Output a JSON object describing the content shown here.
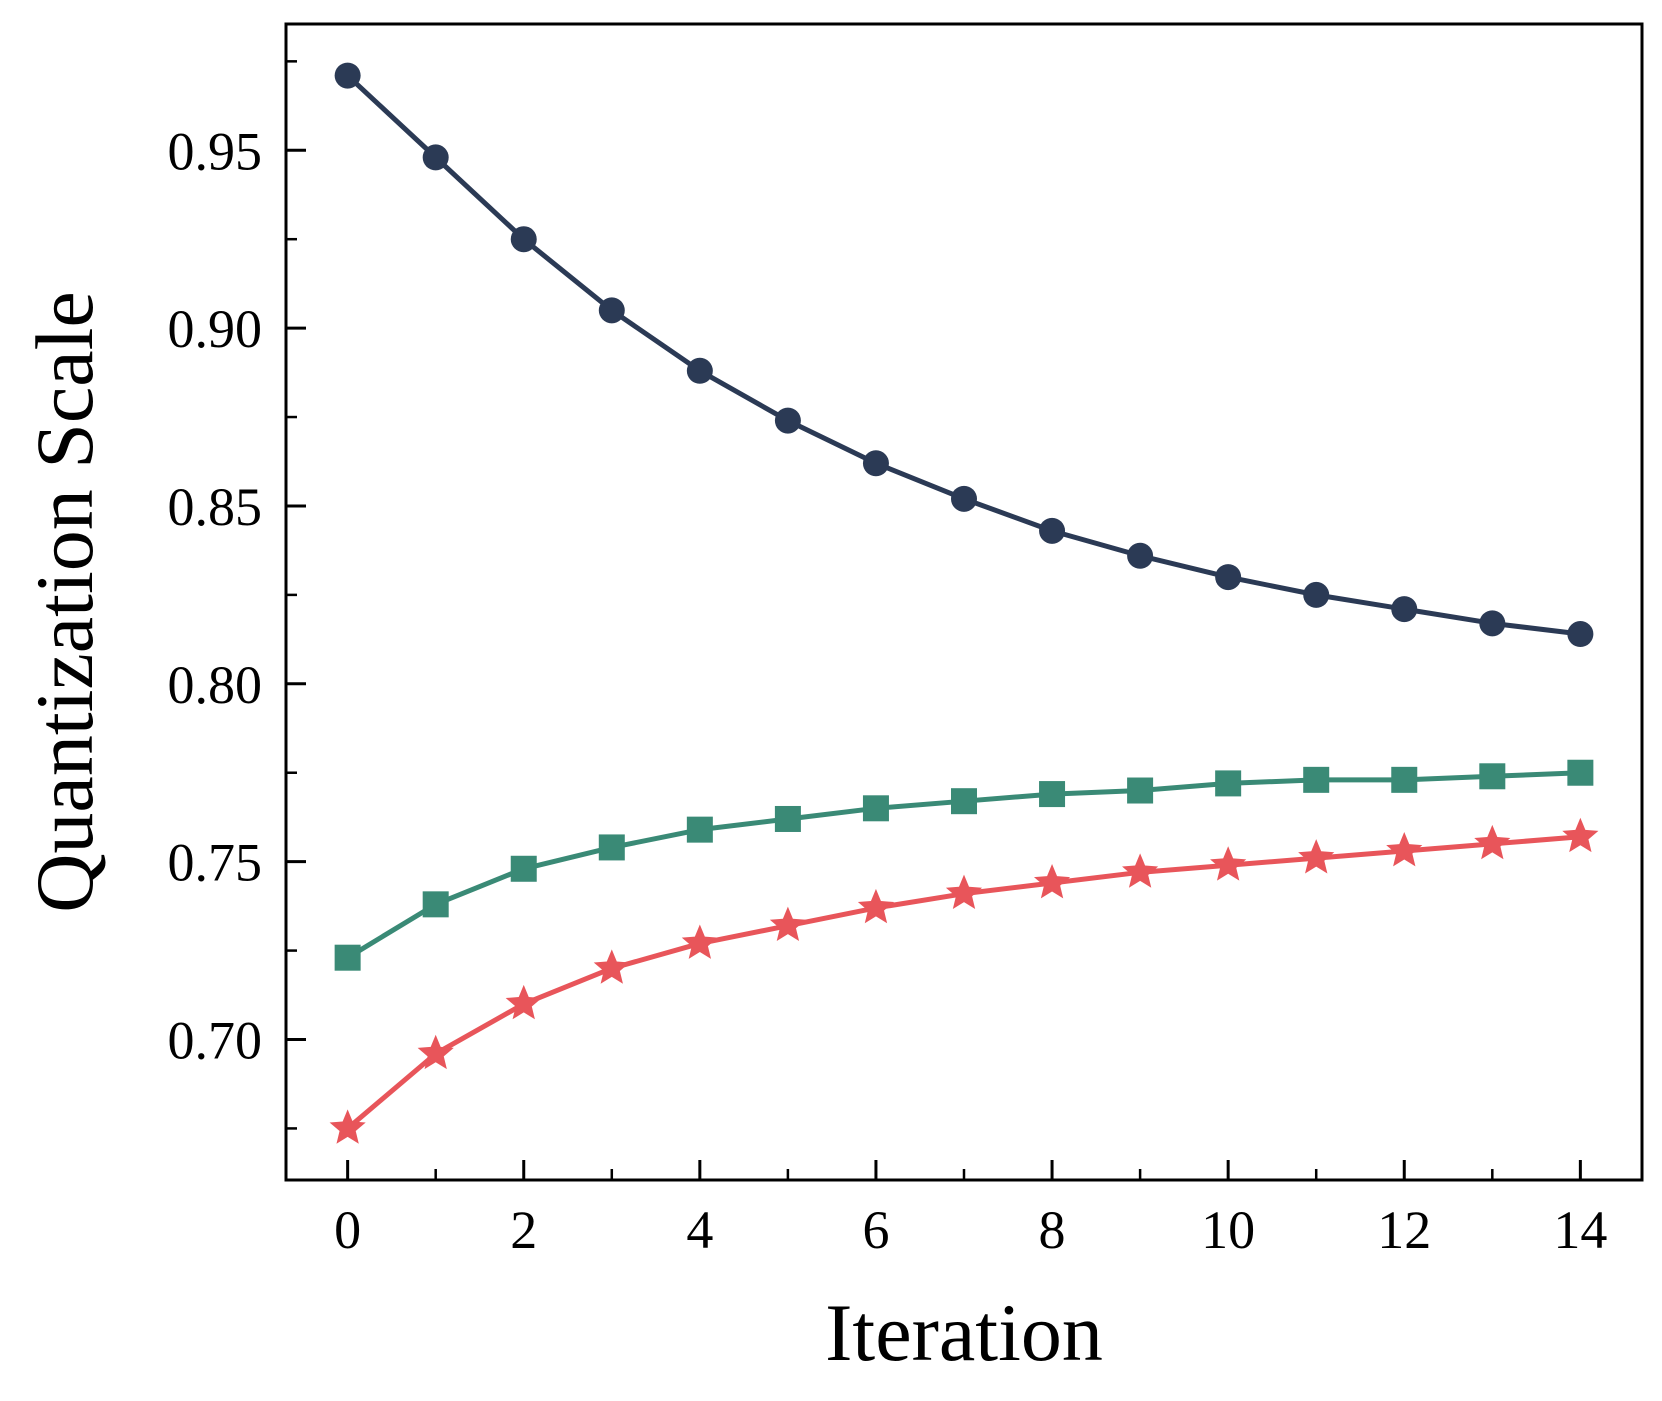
{
  "chart_data": {
    "type": "line",
    "title": "",
    "xlabel": "Iteration",
    "ylabel": "Quantization Scale",
    "xlim": [
      -0.7,
      14.7
    ],
    "ylim": [
      0.6605,
      0.9855
    ],
    "xticks_major": [
      0,
      2,
      4,
      6,
      8,
      10,
      12,
      14
    ],
    "xtick_labels": [
      "0",
      "2",
      "4",
      "6",
      "8",
      "10",
      "12",
      "14"
    ],
    "xticks_minor": [
      1,
      3,
      5,
      7,
      9,
      11,
      13
    ],
    "yticks_major": [
      0.7,
      0.75,
      0.8,
      0.85,
      0.9,
      0.95
    ],
    "ytick_labels": [
      "0.70",
      "0.75",
      "0.80",
      "0.85",
      "0.90",
      "0.95"
    ],
    "yticks_minor": [
      0.675,
      0.725,
      0.775,
      0.825,
      0.875,
      0.925,
      0.975
    ],
    "grid": false,
    "legend": false,
    "x": [
      0,
      1,
      2,
      3,
      4,
      5,
      6,
      7,
      8,
      9,
      10,
      11,
      12,
      13,
      14
    ],
    "series": [
      {
        "name": "series-1",
        "color": "#2b3a55",
        "marker": "circle",
        "values": [
          0.971,
          0.948,
          0.925,
          0.905,
          0.888,
          0.874,
          0.862,
          0.852,
          0.843,
          0.836,
          0.83,
          0.825,
          0.821,
          0.817,
          0.814
        ]
      },
      {
        "name": "series-2",
        "color": "#3a8a76",
        "marker": "square",
        "values": [
          0.723,
          0.738,
          0.748,
          0.754,
          0.759,
          0.762,
          0.765,
          0.767,
          0.769,
          0.77,
          0.772,
          0.773,
          0.773,
          0.774,
          0.775
        ]
      },
      {
        "name": "series-3",
        "color": "#e8555a",
        "marker": "star",
        "values": [
          0.675,
          0.696,
          0.71,
          0.72,
          0.727,
          0.732,
          0.737,
          0.741,
          0.744,
          0.747,
          0.749,
          0.751,
          0.753,
          0.755,
          0.757
        ]
      }
    ]
  }
}
